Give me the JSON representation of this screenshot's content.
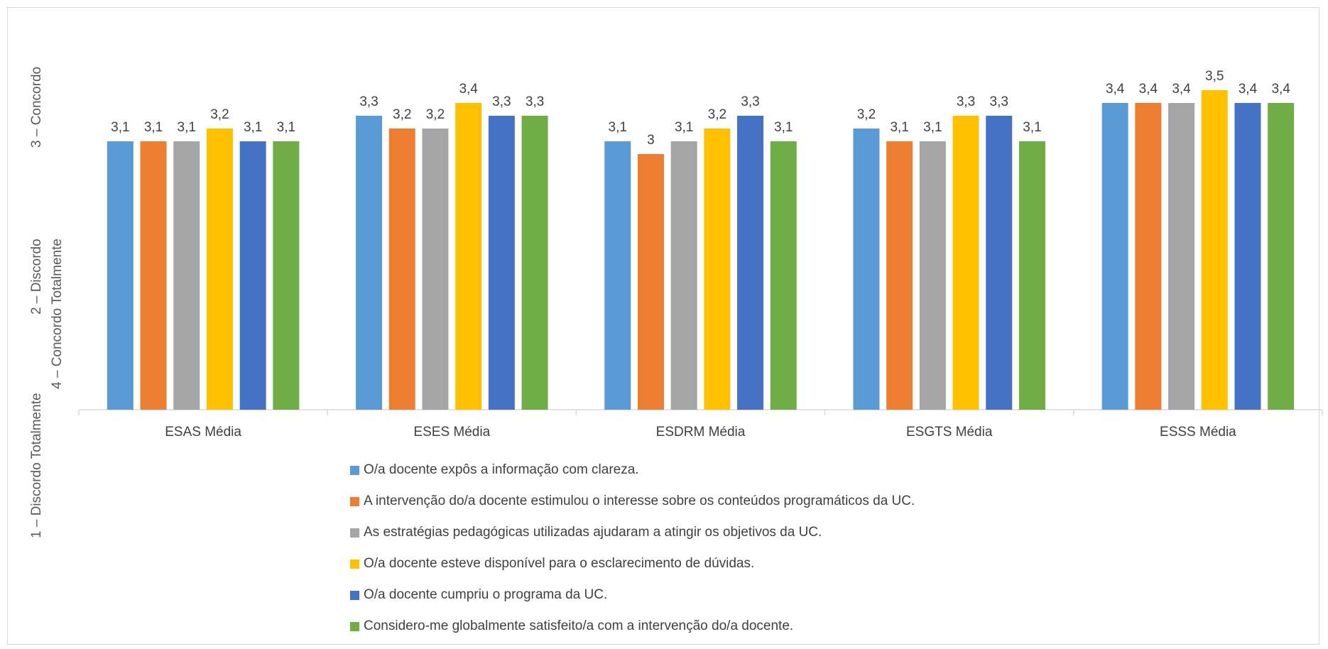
{
  "chart_data": {
    "type": "bar",
    "title": "",
    "xlabel": "",
    "ylabel_lines": [
      "1 – Discordo Totalmente",
      "2 – Discordo",
      "3 – Concordo",
      "4 – Concordo Totalmente"
    ],
    "categories": [
      "ESAS Média",
      "ESES Média",
      "ESDRM Média",
      "ESGTS Média",
      "ESSS Média"
    ],
    "ylim": [
      1,
      4
    ],
    "grid": false,
    "legend_position": "bottom",
    "series": [
      {
        "name": "O/a docente expôs a informação com clareza.",
        "color": "#5B9BD5",
        "values": [
          3.1,
          3.3,
          3.1,
          3.2,
          3.4
        ],
        "labels": [
          "3,1",
          "3,3",
          "3,1",
          "3,2",
          "3,4"
        ]
      },
      {
        "name": "A intervenção do/a docente estimulou o interesse sobre os conteúdos programáticos da UC.",
        "color": "#ED7D31",
        "values": [
          3.1,
          3.2,
          3.0,
          3.1,
          3.4
        ],
        "labels": [
          "3,1",
          "3,2",
          "3",
          "3,1",
          "3,4"
        ]
      },
      {
        "name": "As estratégias pedagógicas utilizadas ajudaram a atingir os objetivos da UC.",
        "color": "#A5A5A5",
        "values": [
          3.1,
          3.2,
          3.1,
          3.1,
          3.4
        ],
        "labels": [
          "3,1",
          "3,2",
          "3,1",
          "3,1",
          "3,4"
        ]
      },
      {
        "name": "O/a docente esteve disponível para o esclarecimento de dúvidas.",
        "color": "#FFC000",
        "values": [
          3.2,
          3.4,
          3.2,
          3.3,
          3.5
        ],
        "labels": [
          "3,2",
          "3,4",
          "3,2",
          "3,3",
          "3,5"
        ]
      },
      {
        "name": "O/a docente cumpriu o programa da UC.",
        "color": "#4472C4",
        "values": [
          3.1,
          3.3,
          3.3,
          3.3,
          3.4
        ],
        "labels": [
          "3,1",
          "3,3",
          "3,3",
          "3,3",
          "3,4"
        ]
      },
      {
        "name": "Considero-me globalmente satisfeito/a com a intervenção do/a docente.",
        "color": "#70AD47",
        "values": [
          3.1,
          3.3,
          3.1,
          3.1,
          3.4
        ],
        "labels": [
          "3,1",
          "3,3",
          "3,1",
          "3,1",
          "3,4"
        ]
      }
    ]
  }
}
